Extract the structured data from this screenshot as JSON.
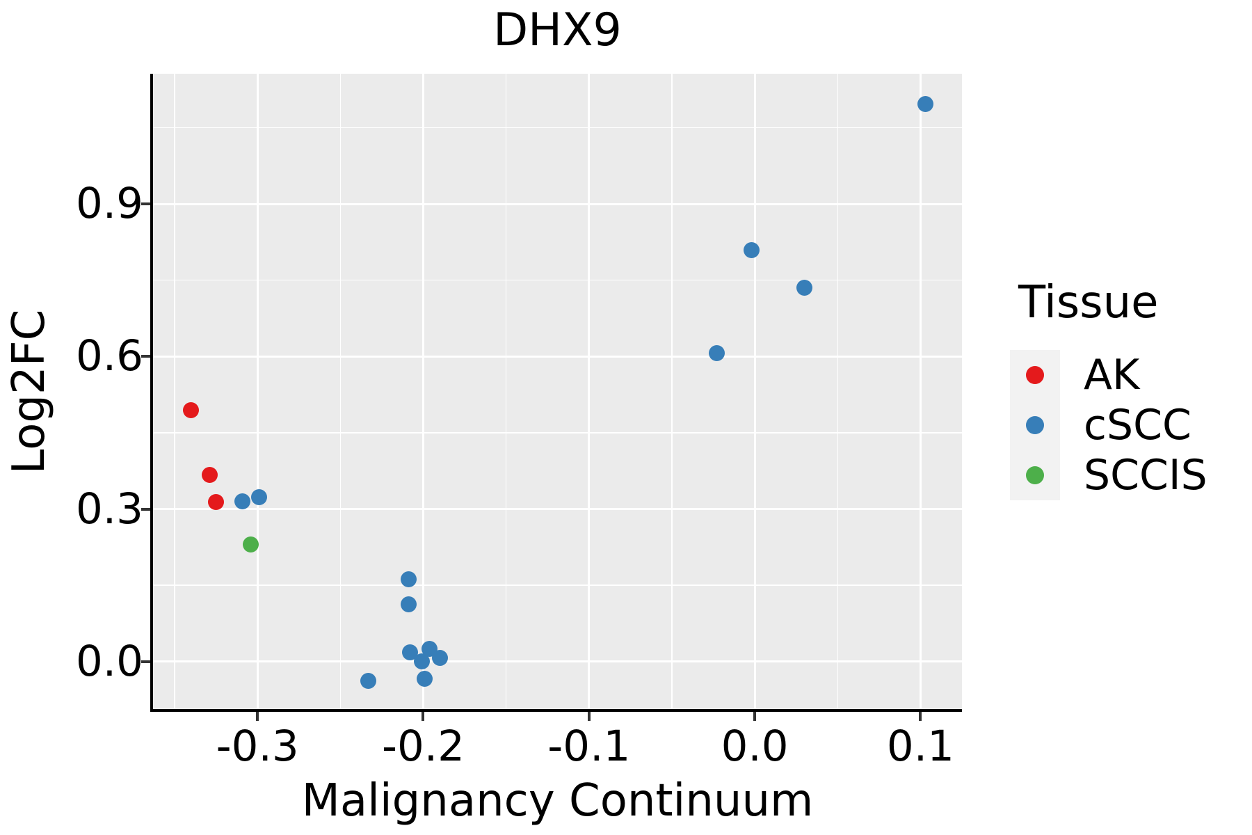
{
  "chart_data": {
    "type": "scatter",
    "title": "DHX9",
    "xlabel": "Malignancy Continuum",
    "ylabel": "Log2FC",
    "xlim": [
      -0.363,
      0.125
    ],
    "ylim": [
      -0.096,
      1.156
    ],
    "grid": true,
    "x_ticks": [
      -0.3,
      -0.2,
      -0.1,
      0.0,
      0.1
    ],
    "x_tick_labels": [
      "-0.3",
      "-0.2",
      "-0.1",
      "0.0",
      "0.1"
    ],
    "x_minor_ticks": [
      -0.35,
      -0.25,
      -0.15,
      -0.05,
      0.05
    ],
    "y_ticks": [
      0.0,
      0.3,
      0.6,
      0.9
    ],
    "y_tick_labels": [
      "0.0",
      "0.3",
      "0.6",
      "0.9"
    ],
    "y_minor_ticks": [
      0.15,
      0.45,
      0.75,
      1.05
    ],
    "legend_title": "Tissue",
    "legend_position": "right",
    "series": [
      {
        "name": "AK",
        "color": "#E41A1C",
        "points": [
          [
            -0.34,
            0.495
          ],
          [
            -0.329,
            0.367
          ],
          [
            -0.325,
            0.314
          ]
        ]
      },
      {
        "name": "cSCC",
        "color": "#377EB8",
        "points": [
          [
            -0.309,
            0.315
          ],
          [
            -0.299,
            0.323
          ],
          [
            -0.233,
            -0.038
          ],
          [
            -0.209,
            0.162
          ],
          [
            -0.209,
            0.113
          ],
          [
            -0.208,
            0.018
          ],
          [
            -0.201,
            0.0
          ],
          [
            -0.199,
            -0.034
          ],
          [
            -0.196,
            0.025
          ],
          [
            -0.19,
            0.007
          ],
          [
            -0.023,
            0.606
          ],
          [
            -0.002,
            0.809
          ],
          [
            0.03,
            0.735
          ],
          [
            0.103,
            1.096
          ]
        ]
      },
      {
        "name": "SCCIS",
        "color": "#4DAF4A",
        "points": [
          [
            -0.304,
            0.23
          ]
        ]
      }
    ],
    "colors": {
      "panel_background": "#EBEBEB",
      "gridline": "#FFFFFF",
      "axis_line": "#000000",
      "tick_mark": "#333333",
      "legend_key_background": "#F2F2F2"
    }
  }
}
